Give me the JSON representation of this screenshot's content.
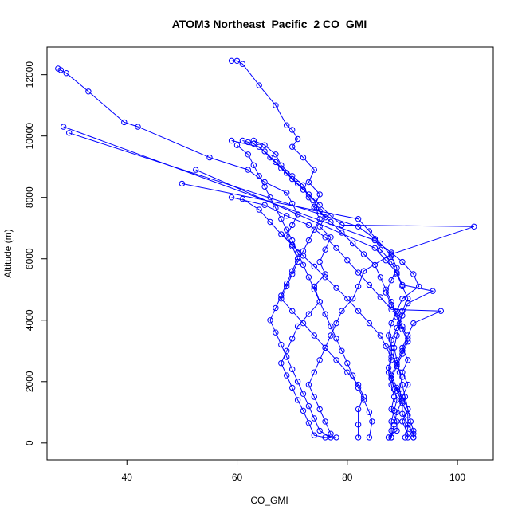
{
  "chart_data": {
    "type": "line",
    "title": "ATOM3 Northeast_Pacific_2 CO_GMI",
    "xlabel": "CO_GMI",
    "ylabel": "Altitude (m)",
    "xlim": [
      25.5,
      106.5
    ],
    "ylim": [
      -550,
      12900
    ],
    "xticks": [
      40,
      60,
      80,
      100
    ],
    "yticks": [
      0,
      2000,
      4000,
      6000,
      8000,
      10000,
      12000
    ],
    "grid": false,
    "legend": "none",
    "markers": "open-circle",
    "color": "#0000ff",
    "series": [
      {
        "points": [
          [
            59,
            12450
          ],
          [
            60,
            12450
          ],
          [
            61,
            12350
          ],
          [
            64,
            11650
          ],
          [
            67,
            11000
          ],
          [
            69,
            10350
          ],
          [
            70,
            10200
          ],
          [
            71,
            9900
          ],
          [
            70,
            9650
          ],
          [
            72,
            9300
          ],
          [
            74,
            8900
          ],
          [
            73,
            8500
          ],
          [
            75,
            8100
          ],
          [
            74,
            7700
          ],
          [
            76,
            7350
          ],
          [
            75,
            7050
          ],
          [
            77,
            6700
          ],
          [
            76,
            6300
          ],
          [
            75,
            5900
          ],
          [
            76,
            5500
          ],
          [
            74,
            5100
          ],
          [
            75,
            4600
          ],
          [
            73,
            4200
          ],
          [
            71,
            3800
          ],
          [
            70,
            3400
          ],
          [
            69,
            3000
          ],
          [
            68,
            2600
          ],
          [
            69,
            2200
          ],
          [
            70,
            1800
          ],
          [
            71,
            1400
          ],
          [
            72,
            1050
          ],
          [
            73,
            650
          ],
          [
            74,
            250
          ],
          [
            76,
            180
          ],
          [
            78,
            180
          ]
        ]
      },
      {
        "points": [
          [
            27.5,
            12200
          ],
          [
            28,
            12150
          ],
          [
            29,
            12050
          ],
          [
            33,
            11450
          ],
          [
            39.5,
            10450
          ],
          [
            42,
            10300
          ],
          [
            55,
            9300
          ],
          [
            62,
            8900
          ],
          [
            65,
            8500
          ],
          [
            69,
            8150
          ],
          [
            70,
            7800
          ],
          [
            71,
            7450
          ],
          [
            70,
            7100
          ],
          [
            69,
            6750
          ],
          [
            70,
            6400
          ],
          [
            71,
            6000
          ],
          [
            70,
            5600
          ],
          [
            69,
            5200
          ],
          [
            68,
            4800
          ],
          [
            67,
            4400
          ],
          [
            66,
            4000
          ],
          [
            67,
            3600
          ],
          [
            68,
            3200
          ],
          [
            69,
            2800
          ],
          [
            70,
            2400
          ],
          [
            71,
            2000
          ],
          [
            72,
            1600
          ],
          [
            73,
            1200
          ],
          [
            74,
            800
          ],
          [
            75,
            400
          ],
          [
            77,
            180
          ]
        ]
      },
      {
        "points": [
          [
            28.5,
            10300
          ],
          [
            85,
            6600
          ],
          [
            88,
            6200
          ],
          [
            90,
            5900
          ],
          [
            92,
            5500
          ],
          [
            93,
            5100
          ],
          [
            90,
            4700
          ],
          [
            89,
            4300
          ],
          [
            88,
            3900
          ],
          [
            87.5,
            3500
          ],
          [
            88,
            3100
          ],
          [
            88,
            2700
          ],
          [
            87.5,
            2300
          ],
          [
            88,
            1900
          ],
          [
            88.5,
            1500
          ],
          [
            88,
            1100
          ],
          [
            89,
            700
          ],
          [
            89,
            400
          ],
          [
            87.5,
            180
          ],
          [
            87.5,
            180
          ]
        ]
      },
      {
        "points": [
          [
            29.5,
            10100
          ],
          [
            82,
            7050
          ],
          [
            85,
            6650
          ],
          [
            86,
            6300
          ],
          [
            88,
            5900
          ],
          [
            89,
            5500
          ],
          [
            90,
            5100
          ],
          [
            91,
            4700
          ],
          [
            90,
            4300
          ],
          [
            89.5,
            3900
          ],
          [
            89,
            3500
          ],
          [
            88.5,
            3100
          ],
          [
            89,
            2700
          ],
          [
            89.5,
            2300
          ],
          [
            90,
            1900
          ],
          [
            90.5,
            1500
          ],
          [
            91,
            1100
          ],
          [
            91.5,
            700
          ],
          [
            92,
            400
          ],
          [
            92,
            180
          ]
        ]
      },
      {
        "points": [
          [
            50,
            8450
          ],
          [
            82,
            7300
          ],
          [
            84,
            6900
          ],
          [
            86,
            6500
          ],
          [
            88,
            6100
          ],
          [
            89,
            5700
          ],
          [
            88,
            5300
          ],
          [
            87,
            4900
          ],
          [
            88,
            4500
          ],
          [
            89,
            4100
          ],
          [
            90,
            3700
          ],
          [
            91,
            3300
          ],
          [
            90,
            2900
          ],
          [
            89,
            2500
          ],
          [
            88,
            2100
          ],
          [
            89,
            1700
          ],
          [
            90,
            1300
          ],
          [
            91,
            900
          ],
          [
            91,
            500
          ],
          [
            90.5,
            180
          ]
        ]
      },
      {
        "points": [
          [
            52.5,
            8900
          ],
          [
            85,
            6350
          ],
          [
            87,
            5950
          ],
          [
            89,
            5550
          ],
          [
            90,
            5150
          ],
          [
            95.5,
            4950
          ],
          [
            91,
            4550
          ],
          [
            90,
            4150
          ],
          [
            89,
            3750
          ],
          [
            88,
            3350
          ],
          [
            88,
            2950
          ],
          [
            89,
            2550
          ],
          [
            90,
            2150
          ],
          [
            89.5,
            1750
          ],
          [
            90,
            1350
          ],
          [
            90,
            950
          ],
          [
            91,
            600
          ],
          [
            92,
            300
          ],
          [
            92,
            180
          ]
        ]
      },
      {
        "points": [
          [
            59,
            9850
          ],
          [
            64,
            9650
          ],
          [
            66,
            9300
          ],
          [
            68,
            8950
          ],
          [
            70,
            8600
          ],
          [
            72,
            8250
          ],
          [
            74,
            7900
          ],
          [
            75,
            7550
          ],
          [
            77,
            7200
          ],
          [
            79,
            6850
          ],
          [
            81,
            6500
          ],
          [
            83,
            6150
          ],
          [
            85,
            5800
          ],
          [
            86,
            5400
          ],
          [
            87,
            5000
          ],
          [
            88,
            4600
          ],
          [
            89,
            4200
          ],
          [
            90,
            3800
          ],
          [
            91,
            3400
          ],
          [
            90,
            3000
          ],
          [
            89,
            2600
          ],
          [
            88,
            2200
          ],
          [
            89,
            1800
          ],
          [
            90,
            1400
          ],
          [
            89,
            1000
          ],
          [
            88.5,
            600
          ],
          [
            88,
            180
          ]
        ]
      },
      {
        "points": [
          [
            61,
            9850
          ],
          [
            62,
            9800
          ],
          [
            63,
            9750
          ],
          [
            65,
            9500
          ],
          [
            67,
            9150
          ],
          [
            69,
            8800
          ],
          [
            71,
            8450
          ],
          [
            73,
            8100
          ],
          [
            75,
            7750
          ],
          [
            77,
            7400
          ],
          [
            79,
            7100
          ],
          [
            103,
            7050
          ],
          [
            88,
            6150
          ],
          [
            83,
            5600
          ],
          [
            82,
            5100
          ],
          [
            81,
            4700
          ],
          [
            79,
            4300
          ],
          [
            78,
            3900
          ],
          [
            77,
            3500
          ],
          [
            76,
            3100
          ],
          [
            75,
            2700
          ],
          [
            74,
            2300
          ],
          [
            73,
            1900
          ],
          [
            74,
            1500
          ],
          [
            75,
            1100
          ],
          [
            76,
            700
          ],
          [
            77,
            300
          ]
        ]
      },
      {
        "points": [
          [
            63,
            9850
          ],
          [
            65,
            9700
          ],
          [
            67,
            9400
          ],
          [
            68,
            9050
          ],
          [
            70,
            8700
          ],
          [
            72,
            8400
          ],
          [
            73,
            8000
          ],
          [
            74,
            7650
          ],
          [
            75,
            7300
          ],
          [
            74,
            6950
          ],
          [
            73,
            6600
          ],
          [
            72,
            6250
          ],
          [
            71,
            5900
          ],
          [
            70,
            5500
          ],
          [
            69,
            5100
          ],
          [
            68,
            4700
          ],
          [
            70,
            4300
          ],
          [
            72,
            3900
          ],
          [
            74,
            3500
          ],
          [
            76,
            3100
          ],
          [
            78,
            2700
          ],
          [
            80,
            2300
          ],
          [
            82,
            1900
          ],
          [
            83,
            1500
          ],
          [
            82,
            1100
          ],
          [
            82,
            600
          ],
          [
            82,
            180
          ]
        ]
      },
      {
        "points": [
          [
            60,
            9700
          ],
          [
            62,
            9400
          ],
          [
            63,
            9050
          ],
          [
            64,
            8700
          ],
          [
            65,
            8350
          ],
          [
            66,
            8000
          ],
          [
            67,
            7650
          ],
          [
            68,
            7300
          ],
          [
            69,
            6950
          ],
          [
            70,
            6600
          ],
          [
            71,
            6200
          ],
          [
            72,
            5800
          ],
          [
            73,
            5400
          ],
          [
            74,
            5000
          ],
          [
            75,
            4600
          ],
          [
            76,
            4200
          ],
          [
            77,
            3800
          ],
          [
            78,
            3400
          ],
          [
            79,
            3000
          ],
          [
            80,
            2600
          ],
          [
            81,
            2200
          ],
          [
            82,
            1800
          ],
          [
            83,
            1400
          ],
          [
            84,
            1000
          ],
          [
            84.5,
            700
          ],
          [
            84,
            180
          ]
        ]
      },
      {
        "points": [
          [
            59,
            8000
          ],
          [
            65,
            7750
          ],
          [
            69,
            7400
          ],
          [
            73,
            7100
          ],
          [
            76,
            6700
          ],
          [
            78,
            6350
          ],
          [
            80,
            5950
          ],
          [
            82,
            5550
          ],
          [
            84,
            5150
          ],
          [
            86,
            4750
          ],
          [
            88,
            4350
          ],
          [
            97,
            4300
          ],
          [
            92,
            3900
          ],
          [
            91,
            3500
          ],
          [
            90,
            3100
          ],
          [
            91,
            2700
          ],
          [
            90,
            2300
          ],
          [
            91,
            1900
          ],
          [
            90,
            1500
          ],
          [
            91,
            1100
          ],
          [
            90,
            700
          ],
          [
            91,
            300
          ],
          [
            91,
            180
          ]
        ]
      },
      {
        "points": [
          [
            61,
            7950
          ],
          [
            64,
            7600
          ],
          [
            66,
            7200
          ],
          [
            68,
            6800
          ],
          [
            70,
            6450
          ],
          [
            72,
            6100
          ],
          [
            74,
            5750
          ],
          [
            76,
            5400
          ],
          [
            78,
            5050
          ],
          [
            80,
            4700
          ],
          [
            82,
            4300
          ],
          [
            84,
            3900
          ],
          [
            86,
            3500
          ],
          [
            87,
            3150
          ],
          [
            88,
            2800
          ],
          [
            87.5,
            2450
          ],
          [
            88,
            2100
          ],
          [
            88.5,
            1750
          ],
          [
            89,
            1400
          ],
          [
            88.5,
            1050
          ],
          [
            88,
            700
          ],
          [
            88,
            400
          ],
          [
            88,
            180
          ]
        ]
      }
    ]
  }
}
